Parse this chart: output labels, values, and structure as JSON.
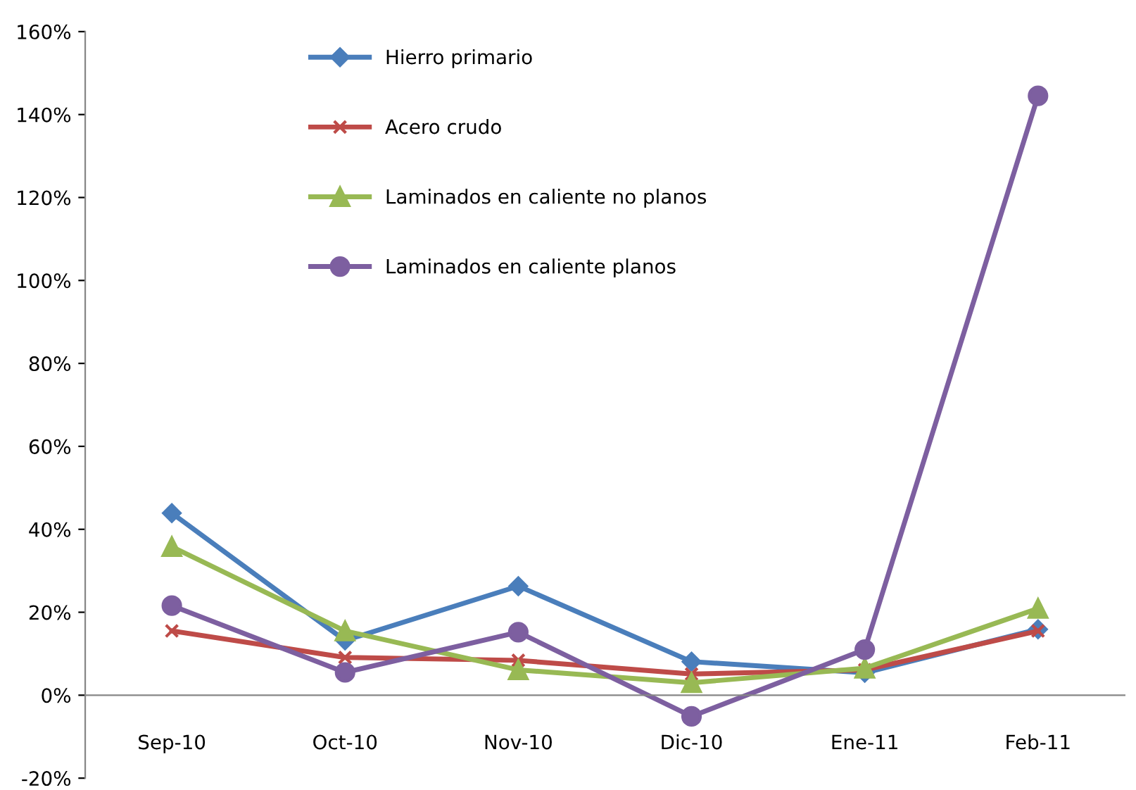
{
  "chart_data": {
    "type": "line",
    "categories": [
      "Sep-10",
      "Oct-10",
      "Nov-10",
      "Dic-10",
      "Ene-11",
      "Feb-11"
    ],
    "series": [
      {
        "name": "Hierro primario",
        "color": "#4a7ebb",
        "marker": "diamond",
        "values": [
          43.9,
          13.2,
          26.3,
          8.1,
          5.4,
          15.9
        ]
      },
      {
        "name": "Acero crudo",
        "color": "#be4b48",
        "marker": "cross",
        "values": [
          15.5,
          9.1,
          8.4,
          5.1,
          6.1,
          15.5
        ]
      },
      {
        "name": "Laminados en caliente no planos",
        "color": "#98b954",
        "marker": "triangle",
        "values": [
          35.8,
          15.5,
          6.1,
          3.0,
          6.5,
          20.9
        ]
      },
      {
        "name": "Laminados en caliente planos",
        "color": "#7d5fa0",
        "marker": "circle",
        "values": [
          21.6,
          5.5,
          15.2,
          -5.1,
          11.0,
          144.5
        ]
      }
    ],
    "ylim": [
      -20,
      160
    ],
    "yticks": [
      {
        "value": -20,
        "label": "-20%"
      },
      {
        "value": 0,
        "label": "0%"
      },
      {
        "value": 20,
        "label": "20%"
      },
      {
        "value": 40,
        "label": "40%"
      },
      {
        "value": 60,
        "label": "60%"
      },
      {
        "value": 80,
        "label": "80%"
      },
      {
        "value": 100,
        "label": "100%"
      },
      {
        "value": 120,
        "label": "120%"
      },
      {
        "value": 140,
        "label": "140%"
      },
      {
        "value": 160,
        "label": "160%"
      }
    ],
    "grid": false,
    "legend": "top left",
    "line_style": "solid"
  }
}
